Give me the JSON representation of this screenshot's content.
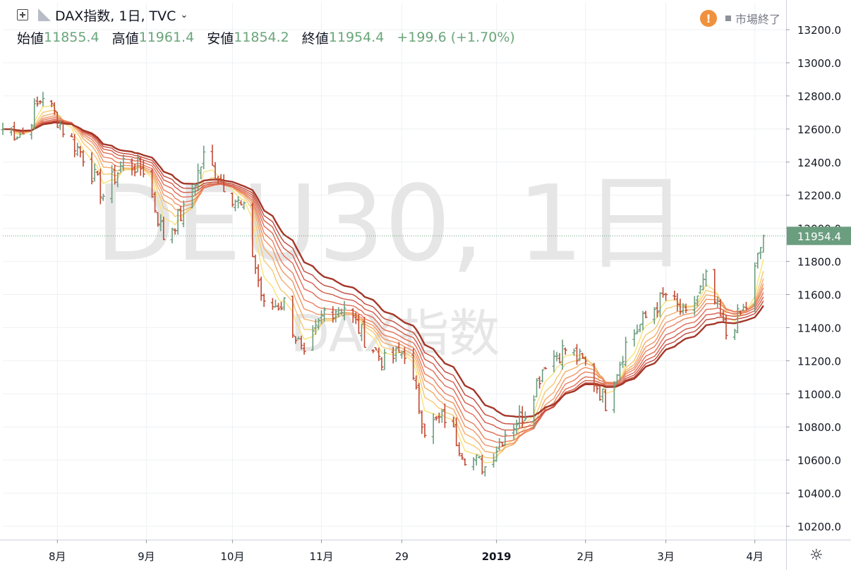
{
  "header": {
    "symbol_label": "DAX指数, 1日, TVC",
    "market_status": "市場終了",
    "ohlc": [
      {
        "label": "始値",
        "value": "11855.4"
      },
      {
        "label": "高値",
        "value": "11961.4"
      },
      {
        "label": "安値",
        "value": "11854.2"
      },
      {
        "label": "終値",
        "value": "11954.4"
      }
    ],
    "change": "+199.6 (+1.70%)"
  },
  "watermark": {
    "main": "DEU30, 1日",
    "sub": "DAX指数"
  },
  "chart_data": {
    "type": "ohlc",
    "ylim": [
      10120,
      13350
    ],
    "y_ticks": [
      "13200.0",
      "13000.0",
      "12800.0",
      "12600.0",
      "12400.0",
      "12200.0",
      "12000.0",
      "11800.0",
      "11600.0",
      "11400.0",
      "11200.0",
      "11000.0",
      "10800.0",
      "10600.0",
      "10400.0",
      "10200.0"
    ],
    "x_labels": [
      "8月",
      "9月",
      "10月",
      "11月",
      "29",
      "2019",
      "2月",
      "3月",
      "4月"
    ],
    "x_label_dates": [
      "2018-08-01",
      "2018-09-01",
      "2018-10-01",
      "2018-11-01",
      "2018-11-29",
      "2019-01-01",
      "2019-02-01",
      "2019-03-01",
      "2019-04-01"
    ],
    "x_range": [
      "2018-07-13",
      "2019-04-05"
    ],
    "last_price": "11954.4",
    "bar_colors": {
      "up": "#6b9e7f",
      "down": "#c04a33"
    },
    "ribbon_colors": [
      "#f7e27a",
      "#f5c873",
      "#f2ad6c",
      "#ee9566",
      "#e97f5f",
      "#e06c55",
      "#d35a48",
      "#c0483a",
      "#a33728"
    ],
    "close_path": [
      [
        "2018-07-13",
        12600
      ],
      [
        "2018-07-20",
        12570
      ],
      [
        "2018-07-27",
        12810
      ],
      [
        "2018-08-03",
        12600
      ],
      [
        "2018-08-10",
        12440
      ],
      [
        "2018-08-17",
        12200
      ],
      [
        "2018-08-24",
        12400
      ],
      [
        "2018-08-31",
        12360
      ],
      [
        "2018-09-07",
        11950
      ],
      [
        "2018-09-14",
        12100
      ],
      [
        "2018-09-21",
        12430
      ],
      [
        "2018-09-28",
        12270
      ],
      [
        "2018-10-05",
        12100
      ],
      [
        "2018-10-12",
        11520
      ],
      [
        "2018-10-19",
        11550
      ],
      [
        "2018-10-26",
        11200
      ],
      [
        "2018-11-02",
        11500
      ],
      [
        "2018-11-09",
        11530
      ],
      [
        "2018-11-16",
        11340
      ],
      [
        "2018-11-23",
        11190
      ],
      [
        "2018-11-30",
        11260
      ],
      [
        "2018-12-07",
        10790
      ],
      [
        "2018-12-14",
        10860
      ],
      [
        "2018-12-21",
        10630
      ],
      [
        "2018-12-28",
        10560
      ],
      [
        "2019-01-04",
        10770
      ],
      [
        "2019-01-11",
        10890
      ],
      [
        "2019-01-18",
        11200
      ],
      [
        "2019-01-25",
        11270
      ],
      [
        "2019-02-01",
        11180
      ],
      [
        "2019-02-08",
        10950
      ],
      [
        "2019-02-15",
        11300
      ],
      [
        "2019-02-22",
        11460
      ],
      [
        "2019-03-01",
        11600
      ],
      [
        "2019-03-08",
        11460
      ],
      [
        "2019-03-15",
        11690
      ],
      [
        "2019-03-22",
        11360
      ],
      [
        "2019-03-29",
        11530
      ],
      [
        "2019-04-04",
        11954.4
      ]
    ]
  }
}
